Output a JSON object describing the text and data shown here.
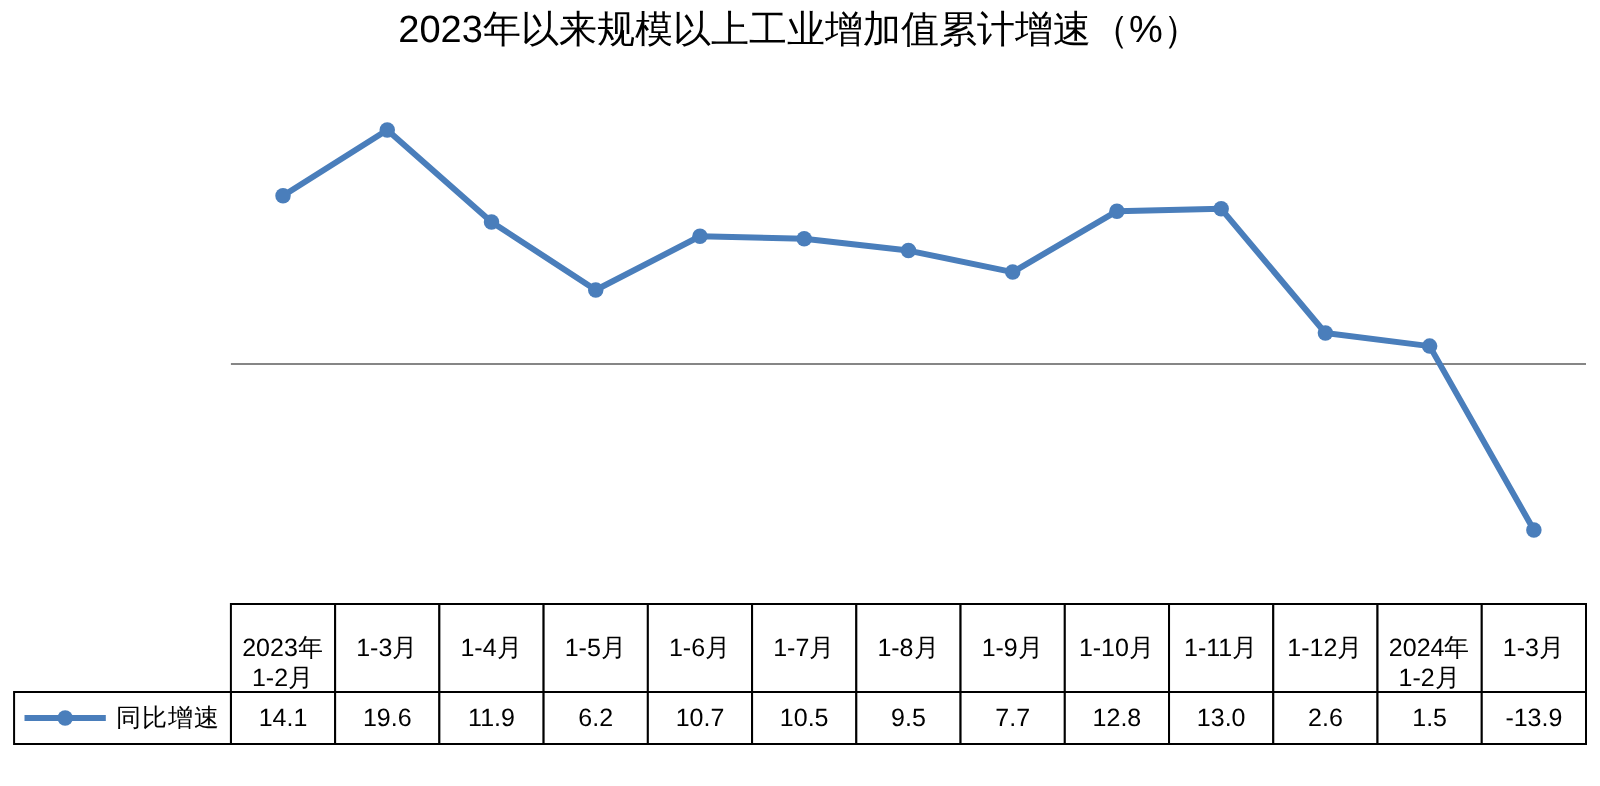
{
  "chart_data": {
    "type": "line",
    "title": "2023年以来规模以上工业增加值累计增速（%）",
    "categories": [
      "2023年\n1-2月",
      "1-3月",
      "1-4月",
      "1-5月",
      "1-6月",
      "1-7月",
      "1-8月",
      "1-9月",
      "1-10月",
      "1-11月",
      "1-12月",
      "2024年\n1-2月",
      "1-3月"
    ],
    "series": [
      {
        "name": "同比增速",
        "color": "#4a7ebb",
        "values": [
          14.1,
          19.6,
          11.9,
          6.2,
          10.7,
          10.5,
          9.5,
          7.7,
          12.8,
          13.0,
          2.6,
          1.5,
          -13.9
        ],
        "value_labels": [
          "14.1",
          "19.6",
          "11.9",
          "6.2",
          "10.7",
          "10.5",
          "9.5",
          "7.7",
          "12.8",
          "13.0",
          "2.6",
          "1.5",
          "-13.9"
        ]
      }
    ],
    "marker": "circle",
    "legend": "bottom left"
  }
}
